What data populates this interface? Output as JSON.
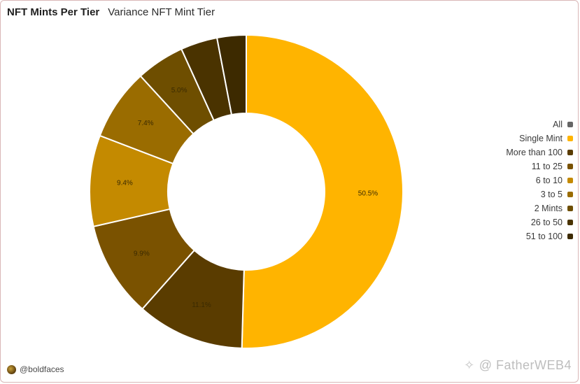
{
  "header": {
    "title": "NFT Mints Per Tier",
    "subtitle": "Variance NFT Mint Tier"
  },
  "footer": {
    "handle": "@boldfaces"
  },
  "watermark": {
    "text": "@ FatherWEB4",
    "icon": "diamond-logo-icon"
  },
  "chart_data": {
    "type": "pie",
    "variant": "donut",
    "title": "NFT Mints Per Tier",
    "legend_position": "right",
    "legend": [
      {
        "name": "All",
        "color": "#666666"
      },
      {
        "name": "Single Mint",
        "color": "#FFB400"
      },
      {
        "name": "More than 100",
        "color": "#5A3C00"
      },
      {
        "name": "11 to 25",
        "color": "#7A5200"
      },
      {
        "name": "6 to 10",
        "color": "#C48A00"
      },
      {
        "name": "3 to 5",
        "color": "#9A6C00"
      },
      {
        "name": "2 Mints",
        "color": "#6E4E00"
      },
      {
        "name": "26 to 50",
        "color": "#4A3300"
      },
      {
        "name": "51 to 100",
        "color": "#3D2A00"
      }
    ],
    "slices": [
      {
        "name": "Single Mint",
        "value": 50.5,
        "label": "50.5%",
        "color": "#FFB400"
      },
      {
        "name": "More than 100",
        "value": 11.1,
        "label": "11.1%",
        "color": "#5A3C00"
      },
      {
        "name": "11 to 25",
        "value": 9.9,
        "label": "9.9%",
        "color": "#7A5200"
      },
      {
        "name": "6 to 10",
        "value": 9.4,
        "label": "9.4%",
        "color": "#C48A00"
      },
      {
        "name": "3 to 5",
        "value": 7.4,
        "label": "7.4%",
        "color": "#9A6C00"
      },
      {
        "name": "2 Mints",
        "value": 5.0,
        "label": "5.0%",
        "color": "#6E4E00"
      },
      {
        "name": "26 to 50",
        "value": 3.8,
        "label": "",
        "color": "#4A3300"
      },
      {
        "name": "51 to 100",
        "value": 3.0,
        "label": "",
        "color": "#3D2A00"
      }
    ]
  }
}
